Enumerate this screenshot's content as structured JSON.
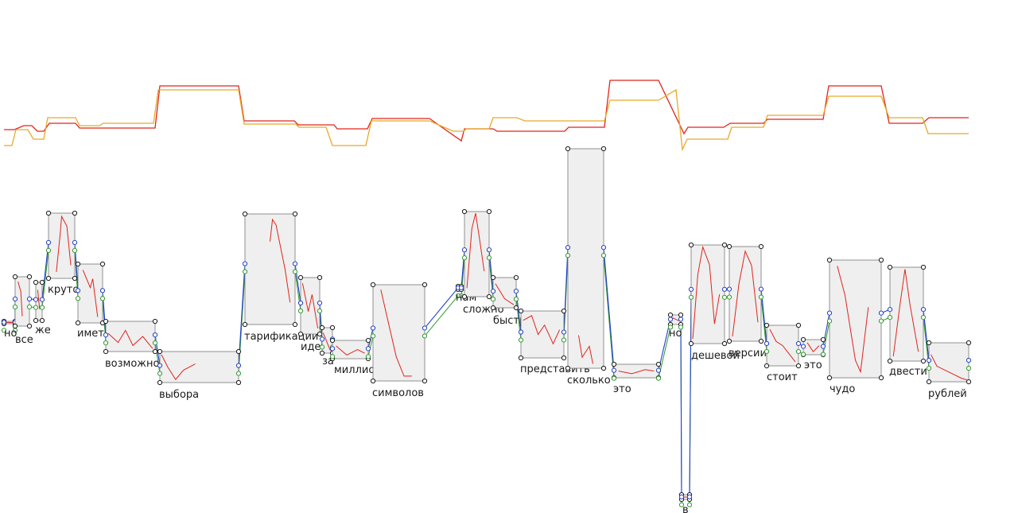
{
  "colors": {
    "background": "#ffffff",
    "box_fill": "#efefef",
    "box_stroke": "#777777",
    "pitch_curve": "#e0241c",
    "energy_curve": "#e8a92a",
    "link_blue": "#2040c8",
    "link_green": "#2e9a2e",
    "handle": "#1a1a1a"
  },
  "words": [
    {
      "text": "но"
    },
    {
      "text": "все"
    },
    {
      "text": "же"
    },
    {
      "text": "круто"
    },
    {
      "text": "иметь"
    },
    {
      "text": "возможность"
    },
    {
      "text": "выбора"
    },
    {
      "text": "тарификации"
    },
    {
      "text": "идет"
    },
    {
      "text": "за"
    },
    {
      "text": "миллион"
    },
    {
      "text": "символов"
    },
    {
      "text": "нам"
    },
    {
      "text": "сложно"
    },
    {
      "text": "быстро"
    },
    {
      "text": "представить"
    },
    {
      "text": "сколько"
    },
    {
      "text": "это"
    },
    {
      "text": "но"
    },
    {
      "text": "в"
    },
    {
      "text": "дешевой"
    },
    {
      "text": "версии"
    },
    {
      "text": "стоит"
    },
    {
      "text": "это"
    },
    {
      "text": "чудо"
    },
    {
      "text": "двести"
    },
    {
      "text": "рублей"
    }
  ]
}
